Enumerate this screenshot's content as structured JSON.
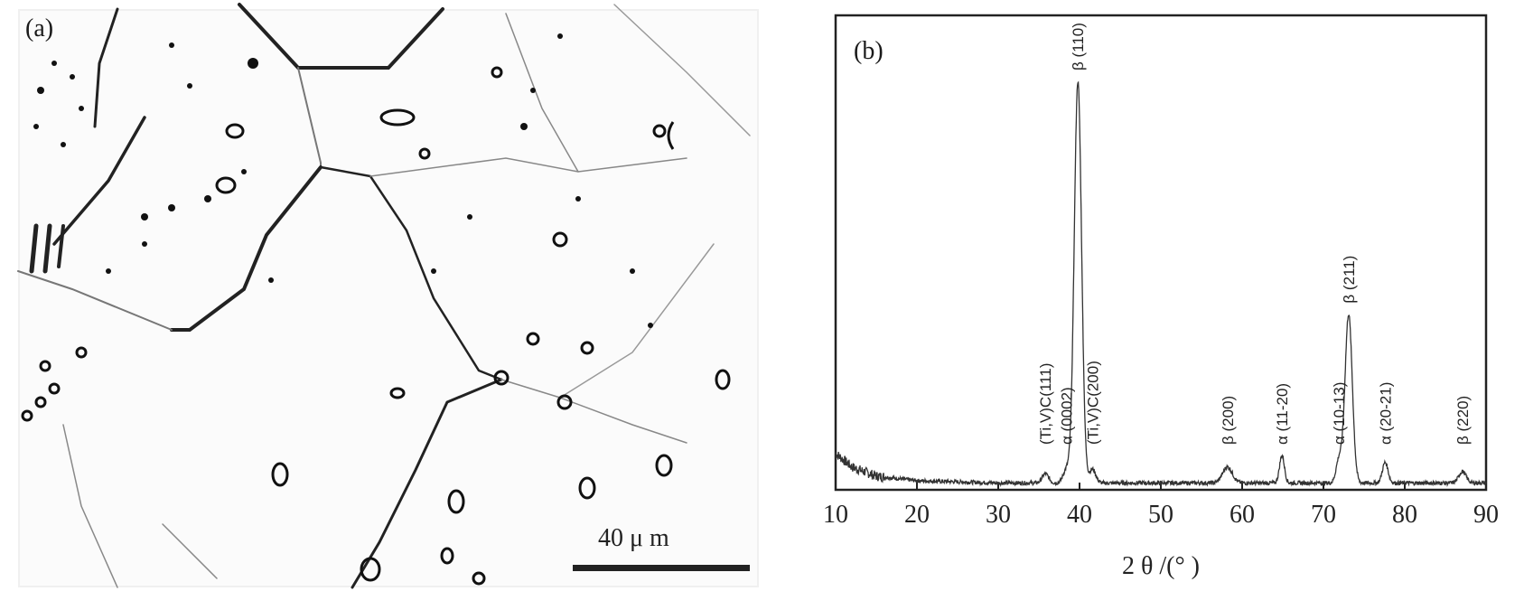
{
  "panel_a": {
    "label": "(a)",
    "scale_bar_label": "40 μ m"
  },
  "panel_b": {
    "label": "(b)"
  },
  "chart_data": {
    "type": "line",
    "title": "",
    "xlabel": "2 θ /(° )",
    "ylabel": "",
    "xlim": [
      10,
      90
    ],
    "ylim": [
      0,
      100
    ],
    "x_ticks": [
      10,
      20,
      30,
      40,
      50,
      60,
      70,
      80,
      90
    ],
    "grid": false,
    "baseline": 2,
    "background": [
      {
        "x": 10,
        "y": 8
      },
      {
        "x": 12,
        "y": 5
      },
      {
        "x": 15,
        "y": 3
      },
      {
        "x": 20,
        "y": 2
      },
      {
        "x": 30,
        "y": 1.5
      },
      {
        "x": 90,
        "y": 1.5
      }
    ],
    "peaks": [
      {
        "x": 35.8,
        "y": 2,
        "width": 0.4,
        "label": "(Ti,V)C(111)"
      },
      {
        "x": 38.4,
        "y": 3,
        "width": 0.4,
        "label": "α (0002)"
      },
      {
        "x": 39.8,
        "y": 88,
        "width": 0.45,
        "label": "β (110)"
      },
      {
        "x": 41.6,
        "y": 3,
        "width": 0.4,
        "label": "(Ti,V)C(200)"
      },
      {
        "x": 58.2,
        "y": 3.5,
        "width": 0.6,
        "label": "β (200)"
      },
      {
        "x": 64.9,
        "y": 6,
        "width": 0.3,
        "label": "α (11-20)"
      },
      {
        "x": 71.9,
        "y": 5,
        "width": 0.35,
        "label": "α (10-13)"
      },
      {
        "x": 73.1,
        "y": 37,
        "width": 0.45,
        "label": "β (211)"
      },
      {
        "x": 77.6,
        "y": 4.5,
        "width": 0.35,
        "label": "α (20-21)"
      },
      {
        "x": 87.1,
        "y": 2.5,
        "width": 0.45,
        "label": "β (220)"
      }
    ]
  }
}
